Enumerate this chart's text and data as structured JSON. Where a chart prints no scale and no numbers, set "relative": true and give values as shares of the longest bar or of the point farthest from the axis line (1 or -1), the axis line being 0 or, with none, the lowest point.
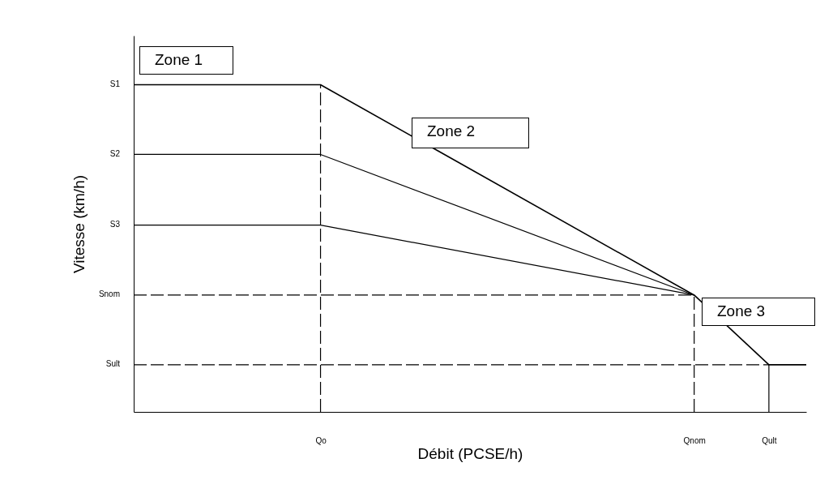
{
  "chart_data": {
    "type": "line",
    "xlabel": "Débit (PCSE/h)",
    "ylabel": "Vitesse (km/h)",
    "relative": true,
    "categories": [
      null,
      null,
      null,
      null,
      null,
      "Qo",
      null,
      null,
      null,
      null,
      null,
      null,
      null,
      null,
      null,
      "Qnom",
      null,
      "Qult",
      null
    ],
    "series": [
      {
        "color": "#000000",
        "values": [
          1,
          null,
          null,
          null,
          null,
          1,
          null,
          null,
          null,
          null,
          null,
          null,
          null,
          null,
          null,
          0.357,
          null,
          0.144,
          0.144
        ]
      },
      {
        "color": "#000000",
        "values": [
          0.787,
          null,
          null,
          null,
          null,
          0.787,
          null,
          null,
          null,
          null,
          null,
          null,
          null,
          null,
          null,
          0.357,
          null,
          null,
          null
        ]
      },
      {
        "color": "#000000",
        "values": [
          0.571,
          null,
          null,
          null,
          null,
          0.571,
          null,
          null,
          null,
          null,
          null,
          null,
          null,
          null,
          null,
          0.357,
          null,
          null,
          null
        ]
      },
      {
        "color": "#000000",
        "line_style": "dashed",
        "values": [
          0.357,
          null,
          null,
          null,
          null,
          null,
          null,
          null,
          null,
          null,
          null,
          null,
          null,
          null,
          null,
          0.357,
          null,
          null,
          null
        ]
      },
      {
        "color": "#000000",
        "line_style": "dashed",
        "values": [
          0.144,
          null,
          null,
          null,
          null,
          null,
          null,
          null,
          null,
          null,
          null,
          null,
          null,
          null,
          null,
          null,
          null,
          0.144,
          null
        ]
      }
    ],
    "ref_lines": [
      {
        "axis": "x",
        "value": "Qo",
        "line_style": "dashed"
      },
      {
        "axis": "x",
        "value": "Qnom",
        "line_style": "dashed"
      },
      {
        "axis": "x",
        "value": "Qult",
        "line_style": "solid"
      }
    ],
    "annotations": [
      "Zone 1",
      "Zone 2",
      "Zone 3",
      "S1",
      "S2",
      "S3",
      "Snom",
      "Sult"
    ]
  }
}
